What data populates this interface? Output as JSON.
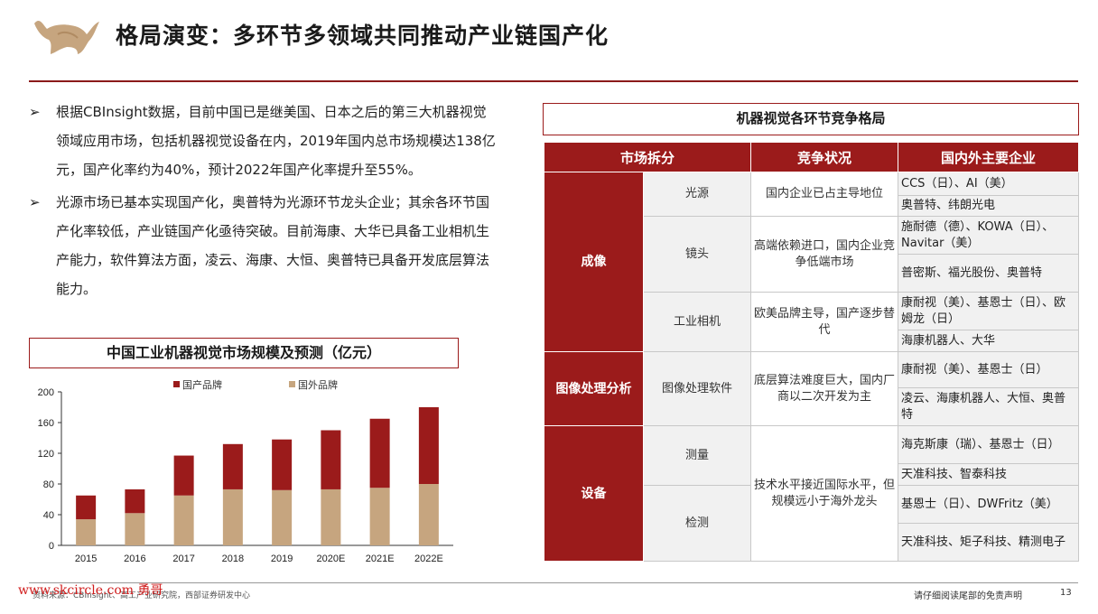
{
  "header": {
    "title": "格局演变：多环节多领域共同推动产业链国产化"
  },
  "bullets": [
    "根据CBInsight数据，目前中国已是继美国、日本之后的第三大机器视觉领域应用市场，包括机器视觉设备在内，2019年国内总市场规模达138亿元，国产化率约为40%，预计2022年国产化率提升至55%。",
    "光源市场已基本实现国产化，奥普特为光源环节龙头企业；其余各环节国产化率较低，产业链国产化亟待突破。目前海康、大华已具备工业相机生产能力，软件算法方面，凌云、海康、大恒、奥普特已具备开发底层算法能力。"
  ],
  "chart_box_title": "中国工业机器视觉市场规模及预测（亿元）",
  "chart_data": {
    "type": "bar",
    "stacked": true,
    "categories": [
      "2015",
      "2016",
      "2017",
      "2018",
      "2019",
      "2020E",
      "2021E",
      "2022E"
    ],
    "series": [
      {
        "name": "国外品牌",
        "values": [
          34,
          42,
          65,
          73,
          72,
          73,
          75,
          80
        ],
        "color": "#c6a57f"
      },
      {
        "name": "国产品牌",
        "values": [
          31,
          31,
          52,
          59,
          66,
          77,
          90,
          100
        ],
        "color": "#9b1b1b"
      }
    ],
    "legend_order": [
      "国产品牌",
      "国外品牌"
    ],
    "yticks": [
      "0",
      "40",
      "80",
      "120",
      "160",
      "200"
    ],
    "ylim": [
      0,
      200
    ],
    "legend_position": "top"
  },
  "table": {
    "title": "机器视觉各环节竞争格局",
    "headers": [
      "市场拆分",
      "竞争状况",
      "国内外主要企业"
    ],
    "imaging": {
      "label": "成像",
      "light": {
        "label": "光源",
        "comp": "国内企业已占主导地位",
        "c1": "CCS（日）、AI（美）",
        "c2": "奥普特、纬朗光电"
      },
      "lens": {
        "label": "镜头",
        "comp": "高端依赖进口，国内企业竞争低端市场",
        "c1": "施耐德（德）、KOWA（日）、Navitar（美）",
        "c2": "普密斯、福光股份、奥普特"
      },
      "camera": {
        "label": "工业相机",
        "comp": "欧美品牌主导，国产逐步替代",
        "c1": "康耐视（美）、基恩士（日）、欧姆龙（日）",
        "c2": "海康机器人、大华"
      }
    },
    "processing": {
      "label": "图像处理分析",
      "sub": "图像处理软件",
      "comp": "底层算法难度巨大，国内厂商以二次开发为主",
      "c1": "康耐视（美）、基恩士（日）",
      "c2": "凌云、海康机器人、大恒、奥普特"
    },
    "equipment": {
      "label": "设备",
      "comp": "技术水平接近国际水平，但规模远小于海外龙头",
      "measure": {
        "label": "测量",
        "c1": "海克斯康（瑞）、基恩士（日）",
        "c2": "天准科技、智泰科技"
      },
      "inspect": {
        "label": "检测",
        "c1": "基恩士（日）、DWFritz（美）",
        "c2": "天准科技、矩子科技、精测电子"
      }
    }
  },
  "footer": {
    "source": "资料来源：CBInsight、高工产业研究院，西部证券研发中心",
    "watermark": "www.skcircle.com 勇哥",
    "disclaimer": "请仔细阅读尾部的免责声明",
    "page": "13"
  }
}
